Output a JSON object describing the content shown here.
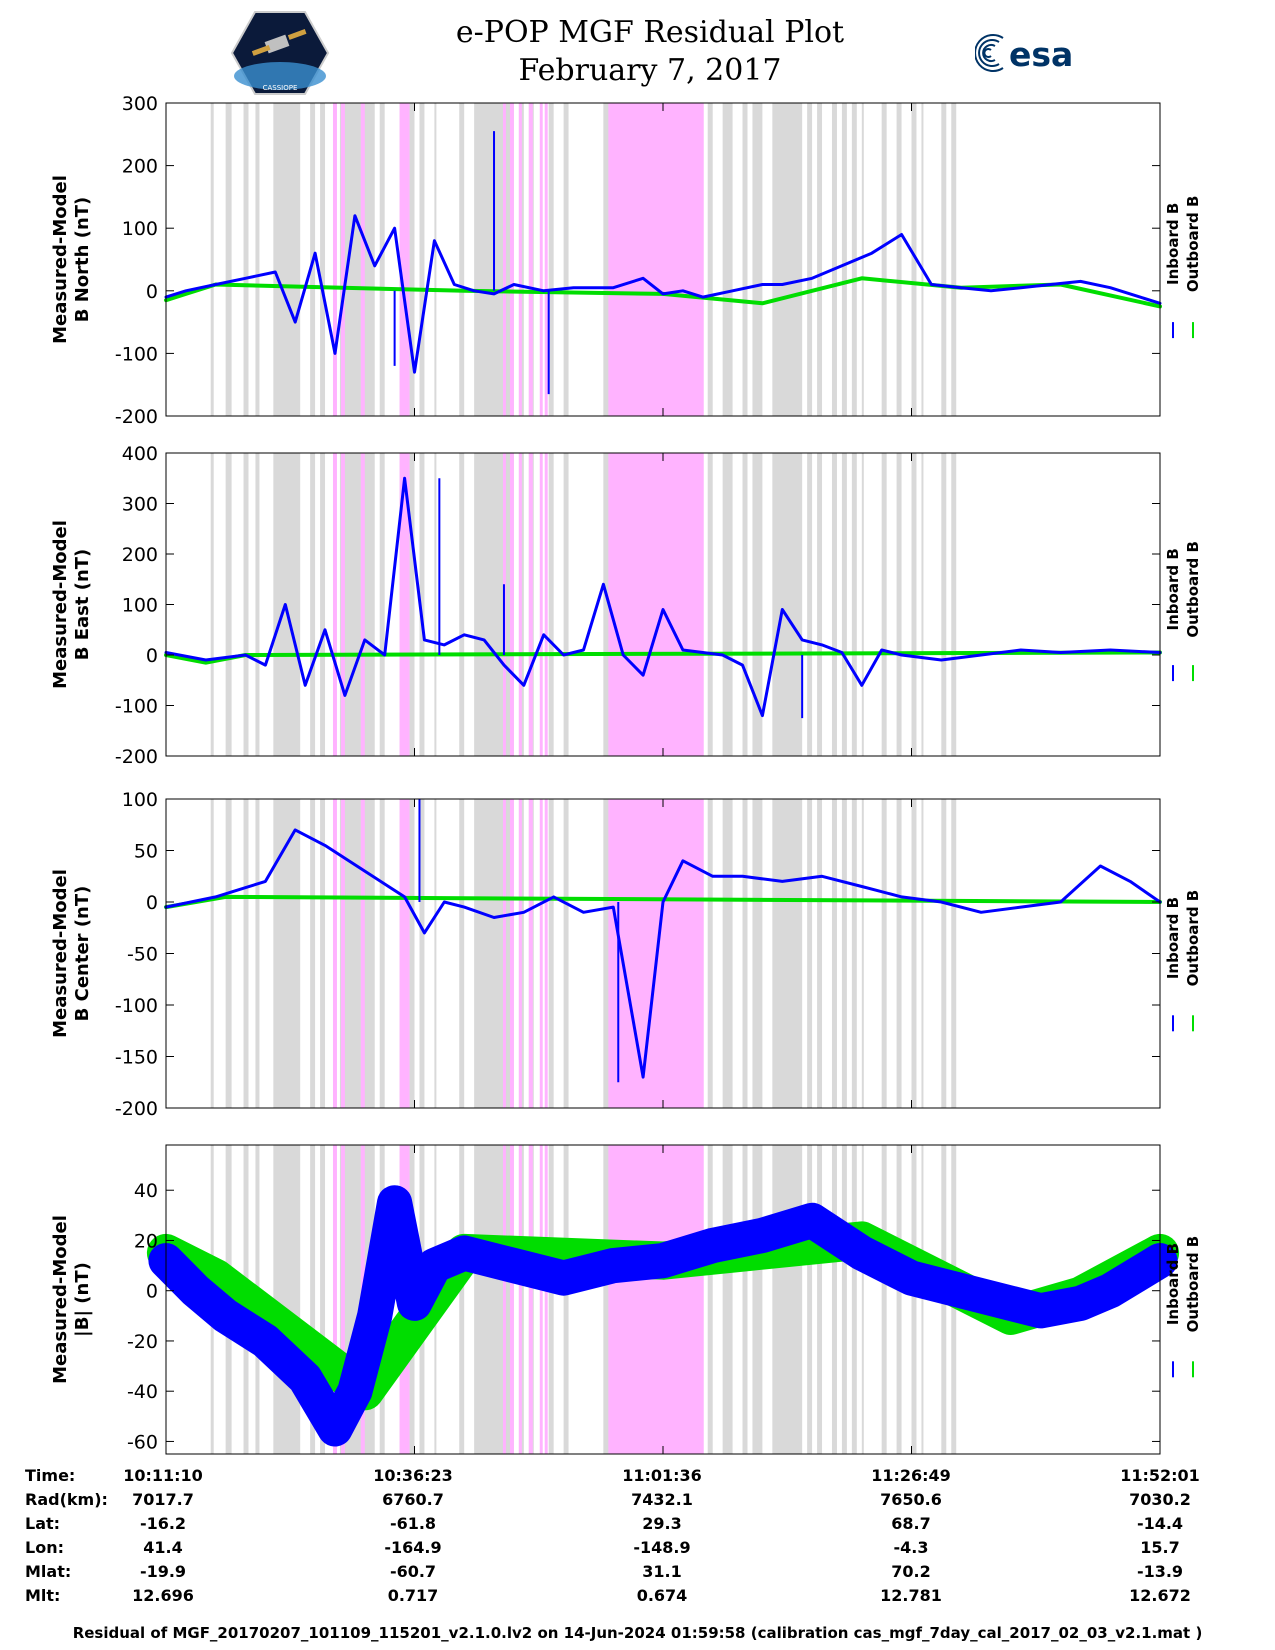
{
  "header": {
    "title_line1": "e-POP MGF Residual Plot",
    "title_line2": "February 7, 2017",
    "esa_logo_text": "esa",
    "cassiope_logo_text": "CASSIOPE"
  },
  "colors": {
    "inboard": "#0000ff",
    "outboard": "#00dd00",
    "gray_band": "#d9d9d9",
    "pink_band": "#ffb3ff"
  },
  "legend": {
    "inboard": "Inboard B",
    "outboard": "Outboard B"
  },
  "chart_data": [
    {
      "type": "line",
      "ylabel_line1": "Measured-Model",
      "ylabel_line2": "B North (nT)",
      "ylim": [
        -200,
        300
      ],
      "yticks": [
        -200,
        -100,
        0,
        100,
        200,
        300
      ],
      "series": [
        {
          "name": "Inboard B",
          "x": [
            0,
            0.02,
            0.05,
            0.08,
            0.11,
            0.13,
            0.15,
            0.17,
            0.19,
            0.21,
            0.23,
            0.25,
            0.27,
            0.29,
            0.31,
            0.33,
            0.35,
            0.38,
            0.41,
            0.45,
            0.48,
            0.5,
            0.52,
            0.54,
            0.57,
            0.6,
            0.62,
            0.65,
            0.68,
            0.71,
            0.74,
            0.77,
            0.8,
            0.83,
            0.86,
            0.89,
            0.92,
            0.95,
            0.98,
            1.0
          ],
          "y": [
            -10,
            0,
            10,
            20,
            30,
            -50,
            60,
            -100,
            120,
            40,
            100,
            -130,
            80,
            10,
            0,
            -5,
            10,
            0,
            5,
            5,
            20,
            -5,
            0,
            -10,
            0,
            10,
            10,
            20,
            40,
            60,
            90,
            10,
            5,
            0,
            5,
            10,
            15,
            5,
            -10,
            -20
          ]
        },
        {
          "name": "Outboard B",
          "x": [
            0,
            0.02,
            0.05,
            0.3,
            0.5,
            0.6,
            0.7,
            0.8,
            0.9,
            1.0
          ],
          "y": [
            -15,
            -5,
            10,
            0,
            -5,
            -20,
            20,
            5,
            10,
            -25
          ]
        }
      ],
      "spikes": [
        {
          "x": 0.33,
          "y": 255
        },
        {
          "x": 0.385,
          "y": -165
        },
        {
          "x": 0.23,
          "y": -120
        }
      ]
    },
    {
      "type": "line",
      "ylabel_line1": "Measured-Model",
      "ylabel_line2": "B East (nT)",
      "ylim": [
        -200,
        400
      ],
      "yticks": [
        -200,
        -100,
        0,
        100,
        200,
        300,
        400
      ],
      "series": [
        {
          "name": "Inboard B",
          "x": [
            0,
            0.04,
            0.08,
            0.1,
            0.12,
            0.14,
            0.16,
            0.18,
            0.2,
            0.22,
            0.24,
            0.26,
            0.28,
            0.3,
            0.32,
            0.34,
            0.36,
            0.38,
            0.4,
            0.42,
            0.44,
            0.46,
            0.48,
            0.5,
            0.52,
            0.54,
            0.56,
            0.58,
            0.6,
            0.62,
            0.64,
            0.66,
            0.68,
            0.7,
            0.72,
            0.74,
            0.78,
            0.82,
            0.86,
            0.9,
            0.95,
            1.0
          ],
          "y": [
            5,
            -10,
            0,
            -20,
            100,
            -60,
            50,
            -80,
            30,
            0,
            350,
            30,
            20,
            40,
            30,
            -20,
            -60,
            40,
            0,
            10,
            140,
            0,
            -40,
            90,
            10,
            5,
            0,
            -20,
            -120,
            90,
            30,
            20,
            5,
            -60,
            10,
            0,
            -10,
            0,
            10,
            5,
            10,
            5
          ]
        },
        {
          "name": "Outboard B",
          "x": [
            0,
            0.04,
            0.08,
            1.0
          ],
          "y": [
            0,
            -15,
            0,
            5
          ]
        }
      ],
      "spikes": [
        {
          "x": 0.275,
          "y": 350
        },
        {
          "x": 0.34,
          "y": 140
        },
        {
          "x": 0.64,
          "y": -125
        }
      ]
    },
    {
      "type": "line",
      "ylabel_line1": "Measured-Model",
      "ylabel_line2": "B Center (nT)",
      "ylim": [
        -200,
        100
      ],
      "yticks": [
        -200,
        -150,
        -100,
        -50,
        0,
        50,
        100
      ],
      "series": [
        {
          "name": "Inboard B",
          "x": [
            0,
            0.05,
            0.1,
            0.13,
            0.16,
            0.2,
            0.24,
            0.26,
            0.28,
            0.3,
            0.33,
            0.36,
            0.39,
            0.42,
            0.45,
            0.48,
            0.5,
            0.52,
            0.55,
            0.58,
            0.62,
            0.66,
            0.7,
            0.74,
            0.78,
            0.82,
            0.86,
            0.9,
            0.94,
            0.97,
            1.0
          ],
          "y": [
            -5,
            5,
            20,
            70,
            55,
            30,
            5,
            -30,
            0,
            -5,
            -15,
            -10,
            5,
            -10,
            -5,
            -170,
            0,
            40,
            25,
            25,
            20,
            25,
            15,
            5,
            0,
            -10,
            -5,
            0,
            35,
            20,
            0
          ]
        },
        {
          "name": "Outboard B",
          "x": [
            0,
            0.03,
            0.06,
            1.0
          ],
          "y": [
            -5,
            0,
            5,
            0
          ]
        }
      ],
      "spikes": [
        {
          "x": 0.255,
          "y": 100
        },
        {
          "x": 0.455,
          "y": -175
        }
      ]
    },
    {
      "type": "line",
      "ylabel_line1": "Measured-Model",
      "ylabel_line2": "|B| (nT)",
      "ylim": [
        -65,
        58
      ],
      "yticks": [
        -60,
        -40,
        -20,
        0,
        20,
        40
      ],
      "series": [
        {
          "name": "Inboard B",
          "x": [
            0,
            0.03,
            0.06,
            0.1,
            0.14,
            0.17,
            0.19,
            0.21,
            0.23,
            0.25,
            0.27,
            0.3,
            0.35,
            0.4,
            0.45,
            0.5,
            0.55,
            0.6,
            0.65,
            0.7,
            0.75,
            0.8,
            0.85,
            0.88,
            0.92,
            0.95,
            1.0
          ],
          "y": [
            12,
            0,
            -10,
            -20,
            -35,
            -55,
            -40,
            -10,
            35,
            -5,
            10,
            15,
            10,
            5,
            10,
            12,
            18,
            22,
            28,
            15,
            5,
            0,
            -5,
            -8,
            -5,
            0,
            12
          ]
        },
        {
          "name": "Outboard B",
          "x": [
            0,
            0.05,
            0.2,
            0.3,
            0.5,
            0.7,
            0.85,
            0.92,
            1.0
          ],
          "y": [
            15,
            5,
            -40,
            15,
            12,
            20,
            -10,
            -2,
            15
          ]
        }
      ],
      "band_halfwidth": 7
    }
  ],
  "info_table": {
    "labels": [
      "Time:",
      "Rad(km):",
      "Lat:",
      "Lon:",
      "Mlat:",
      "Mlt:"
    ],
    "columns": [
      {
        "time": "10:11:10",
        "rad": "7017.7",
        "lat": "-16.2",
        "lon": "41.4",
        "mlat": "-19.9",
        "mlt": "12.696"
      },
      {
        "time": "10:36:23",
        "rad": "6760.7",
        "lat": "-61.8",
        "lon": "-164.9",
        "mlat": "-60.7",
        "mlt": "0.717"
      },
      {
        "time": "11:01:36",
        "rad": "7432.1",
        "lat": "29.3",
        "lon": "-148.9",
        "mlat": "31.1",
        "mlt": "0.674"
      },
      {
        "time": "11:26:49",
        "rad": "7650.6",
        "lat": "68.7",
        "lon": "-4.3",
        "mlat": "70.2",
        "mlt": "12.781"
      },
      {
        "time": "11:52:01",
        "rad": "7030.2",
        "lat": "-14.4",
        "lon": "15.7",
        "mlat": "-13.9",
        "mlt": "12.672"
      }
    ]
  },
  "footer": "Residual of MGF_20170207_101109_115201_v2.1.0.lv2 on 14-Jun-2024 01:59:58 (calibration cas_mgf_7day_cal_2017_02_03_v2.1.mat )"
}
